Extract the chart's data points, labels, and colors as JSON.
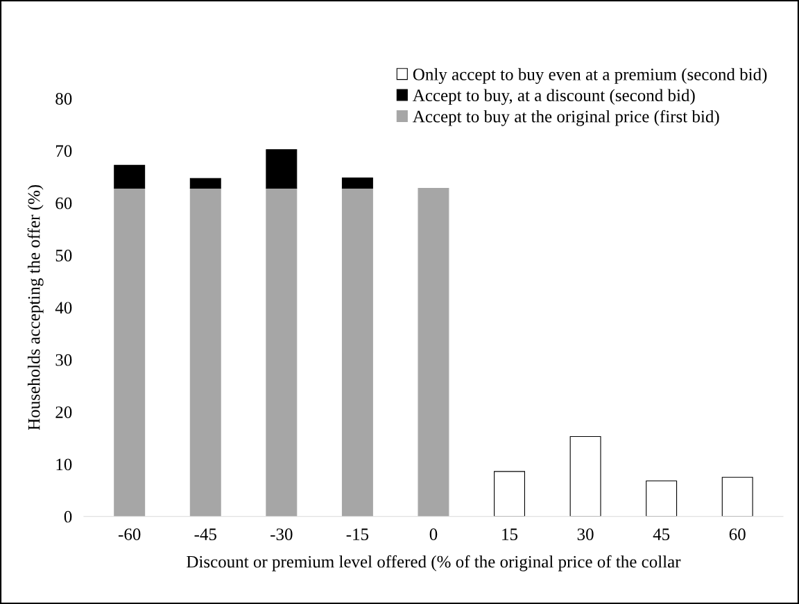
{
  "chart_data": {
    "type": "bar",
    "stacked": true,
    "xlabel": "Discount or premium level offered (% of the original price of the collar",
    "ylabel": "Households accepting the offer (%)",
    "categories": [
      "-60",
      "-45",
      "-30",
      "-15",
      "0",
      "15",
      "30",
      "45",
      "60"
    ],
    "series": [
      {
        "name": "Accept to buy at the original price (first bid)",
        "color": "#a6a6a6",
        "values": [
          62.8,
          62.8,
          62.8,
          62.8,
          62.8,
          null,
          null,
          null,
          null
        ]
      },
      {
        "name": "Accept to buy, at a discount (second bid)",
        "color": "#000000",
        "values": [
          4.4,
          1.9,
          7.4,
          2.0,
          null,
          null,
          null,
          null,
          null
        ]
      },
      {
        "name": "Only accept to buy even at a premium (second bid)",
        "color": "#ffffff",
        "values": [
          null,
          null,
          null,
          null,
          null,
          8.6,
          15.3,
          6.8,
          7.5
        ]
      }
    ],
    "ylim": [
      0,
      80
    ],
    "yticks": [
      0,
      10,
      20,
      30,
      40,
      50,
      60,
      70,
      80
    ],
    "legend": "top right",
    "grid": false
  }
}
